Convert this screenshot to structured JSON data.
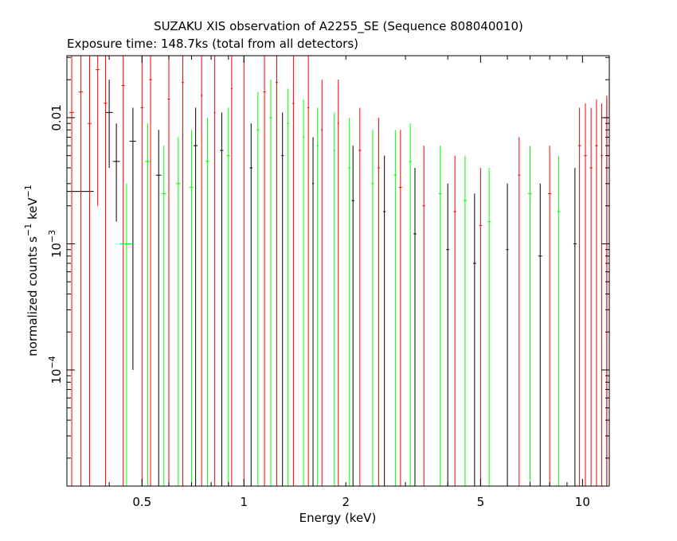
{
  "chart_data": {
    "type": "scatter",
    "title": "SUZAKU XIS observation of A2255_SE (Sequence 808040010)",
    "subtitle": "Exposure time: 148.7ks (total from all detectors)",
    "xlabel": "Energy (keV)",
    "ylabel": {
      "base": "normalized counts s",
      "exp1": "−1",
      "mid": " keV",
      "exp2": "−1"
    },
    "x_scale": "log",
    "y_scale": "log",
    "xlim": [
      0.3,
      12.0
    ],
    "ylim": [
      1.2e-05,
      0.031
    ],
    "x_ticks": [
      {
        "value": 0.5,
        "label": "0.5"
      },
      {
        "value": 1,
        "label": "1"
      },
      {
        "value": 2,
        "label": "2"
      },
      {
        "value": 5,
        "label": "5"
      },
      {
        "value": 10,
        "label": "10"
      }
    ],
    "y_ticks": [
      {
        "value": 0.01,
        "base": "0.01",
        "exp": ""
      },
      {
        "value": 0.001,
        "base": "10",
        "exp": "−3"
      },
      {
        "value": 0.0001,
        "base": "10",
        "exp": "−4"
      }
    ],
    "grid": false,
    "series": [
      {
        "color": "#000000",
        "points": [
          {
            "x": 0.3,
            "y": 0.0026,
            "xlo": 0.3,
            "xhi": 0.36,
            "ylo": 0.0009,
            "yhi": 0.005
          },
          {
            "x": 0.4,
            "y": 0.011,
            "xlo": 0.39,
            "xhi": 0.41,
            "ylo": 0.004,
            "yhi": 0.02
          },
          {
            "x": 0.42,
            "y": 0.0045,
            "xlo": 0.41,
            "xhi": 0.43,
            "ylo": 0.0015,
            "yhi": 0.009
          },
          {
            "x": 0.47,
            "y": 0.0065,
            "xlo": 0.46,
            "xhi": 0.48,
            "ylo": 0.0001,
            "yhi": 0.012
          },
          {
            "x": 0.56,
            "y": 0.0035,
            "xlo": 0.55,
            "xhi": 0.57,
            "ylo": 1.2e-05,
            "yhi": 0.008
          },
          {
            "x": 0.72,
            "y": 0.006,
            "xlo": 0.71,
            "xhi": 0.73,
            "ylo": 1.2e-05,
            "yhi": 0.012
          },
          {
            "x": 0.86,
            "y": 0.0055,
            "xlo": 0.85,
            "xhi": 0.87,
            "ylo": 1.2e-05,
            "yhi": 0.011
          },
          {
            "x": 1.05,
            "y": 0.004,
            "xlo": 1.04,
            "xhi": 1.06,
            "ylo": 1.2e-05,
            "yhi": 0.009
          },
          {
            "x": 1.3,
            "y": 0.005,
            "xlo": 1.29,
            "xhi": 1.31,
            "ylo": 1.2e-05,
            "yhi": 0.011
          },
          {
            "x": 1.6,
            "y": 0.003,
            "xlo": 1.59,
            "xhi": 1.61,
            "ylo": 1.2e-05,
            "yhi": 0.007
          },
          {
            "x": 2.1,
            "y": 0.0022,
            "xlo": 2.08,
            "xhi": 2.12,
            "ylo": 1.2e-05,
            "yhi": 0.006
          },
          {
            "x": 2.6,
            "y": 0.0018,
            "xlo": 2.58,
            "xhi": 2.62,
            "ylo": 1.2e-05,
            "yhi": 0.005
          },
          {
            "x": 3.2,
            "y": 0.0012,
            "xlo": 3.17,
            "xhi": 3.23,
            "ylo": 1.2e-05,
            "yhi": 0.004
          },
          {
            "x": 4.0,
            "y": 0.0009,
            "xlo": 3.96,
            "xhi": 4.04,
            "ylo": 1.2e-05,
            "yhi": 0.003
          },
          {
            "x": 4.8,
            "y": 0.0007,
            "xlo": 4.75,
            "xhi": 4.85,
            "ylo": 1.2e-05,
            "yhi": 0.0025
          },
          {
            "x": 6.0,
            "y": 0.0009,
            "xlo": 5.95,
            "xhi": 6.05,
            "ylo": 1.2e-05,
            "yhi": 0.003
          },
          {
            "x": 7.5,
            "y": 0.0008,
            "xlo": 7.4,
            "xhi": 7.6,
            "ylo": 1.2e-05,
            "yhi": 0.003
          },
          {
            "x": 9.5,
            "y": 0.001,
            "xlo": 9.4,
            "xhi": 9.6,
            "ylo": 1.2e-05,
            "yhi": 0.004
          },
          {
            "x": 11.8,
            "y": 0.01,
            "xlo": 11.6,
            "xhi": 11.95,
            "ylo": 1.2e-05,
            "yhi": 0.014
          }
        ]
      },
      {
        "color": "#ff0000",
        "points": [
          {
            "x": 0.31,
            "y": 0.011,
            "xlo": 0.305,
            "xhi": 0.315,
            "ylo": 1.2e-05,
            "yhi": 0.031
          },
          {
            "x": 0.33,
            "y": 0.016,
            "xlo": 0.325,
            "xhi": 0.335,
            "ylo": 1.2e-05,
            "yhi": 0.031
          },
          {
            "x": 0.35,
            "y": 0.009,
            "xlo": 0.345,
            "xhi": 0.355,
            "ylo": 1.2e-05,
            "yhi": 0.031
          },
          {
            "x": 0.37,
            "y": 0.024,
            "xlo": 0.365,
            "xhi": 0.375,
            "ylo": 0.002,
            "yhi": 0.031
          },
          {
            "x": 0.39,
            "y": 0.013,
            "xlo": 0.385,
            "xhi": 0.395,
            "ylo": 1.2e-05,
            "yhi": 0.031
          },
          {
            "x": 0.44,
            "y": 0.018,
            "xlo": 0.435,
            "xhi": 0.445,
            "ylo": 1.2e-05,
            "yhi": 0.031
          },
          {
            "x": 0.5,
            "y": 0.012,
            "xlo": 0.495,
            "xhi": 0.505,
            "ylo": 1.2e-05,
            "yhi": 0.031
          },
          {
            "x": 0.53,
            "y": 0.02,
            "xlo": 0.525,
            "xhi": 0.535,
            "ylo": 1.2e-05,
            "yhi": 0.031
          },
          {
            "x": 0.6,
            "y": 0.014,
            "xlo": 0.595,
            "xhi": 0.605,
            "ylo": 1.2e-05,
            "yhi": 0.031
          },
          {
            "x": 0.66,
            "y": 0.019,
            "xlo": 0.655,
            "xhi": 0.665,
            "ylo": 1.2e-05,
            "yhi": 0.031
          },
          {
            "x": 0.75,
            "y": 0.015,
            "xlo": 0.745,
            "xhi": 0.755,
            "ylo": 1.2e-05,
            "yhi": 0.031
          },
          {
            "x": 0.82,
            "y": 0.011,
            "xlo": 0.815,
            "xhi": 0.825,
            "ylo": 1.2e-05,
            "yhi": 0.031
          },
          {
            "x": 0.92,
            "y": 0.017,
            "xlo": 0.915,
            "xhi": 0.925,
            "ylo": 1.2e-05,
            "yhi": 0.031
          },
          {
            "x": 1.0,
            "y": 0.028,
            "xlo": 0.995,
            "xhi": 1.005,
            "ylo": 1.2e-05,
            "yhi": 0.031
          },
          {
            "x": 1.15,
            "y": 0.016,
            "xlo": 1.14,
            "xhi": 1.16,
            "ylo": 1.2e-05,
            "yhi": 0.031
          },
          {
            "x": 1.25,
            "y": 0.019,
            "xlo": 1.24,
            "xhi": 1.26,
            "ylo": 1.2e-05,
            "yhi": 0.031
          },
          {
            "x": 1.4,
            "y": 0.013,
            "xlo": 1.39,
            "xhi": 1.41,
            "ylo": 1.2e-05,
            "yhi": 0.031
          },
          {
            "x": 1.55,
            "y": 0.012,
            "xlo": 1.54,
            "xhi": 1.56,
            "ylo": 1.2e-05,
            "yhi": 0.031
          },
          {
            "x": 1.7,
            "y": 0.008,
            "xlo": 1.69,
            "xhi": 1.71,
            "ylo": 1.2e-05,
            "yhi": 0.02
          },
          {
            "x": 1.9,
            "y": 0.009,
            "xlo": 1.89,
            "xhi": 1.91,
            "ylo": 1.2e-05,
            "yhi": 0.02
          },
          {
            "x": 2.2,
            "y": 0.0055,
            "xlo": 2.18,
            "xhi": 2.22,
            "ylo": 1.2e-05,
            "yhi": 0.012
          },
          {
            "x": 2.5,
            "y": 0.004,
            "xlo": 2.48,
            "xhi": 2.52,
            "ylo": 1.2e-05,
            "yhi": 0.01
          },
          {
            "x": 2.9,
            "y": 0.0028,
            "xlo": 2.87,
            "xhi": 2.93,
            "ylo": 1.2e-05,
            "yhi": 0.008
          },
          {
            "x": 3.4,
            "y": 0.002,
            "xlo": 3.37,
            "xhi": 3.43,
            "ylo": 1.2e-05,
            "yhi": 0.006
          },
          {
            "x": 4.2,
            "y": 0.0018,
            "xlo": 4.16,
            "xhi": 4.24,
            "ylo": 1.2e-05,
            "yhi": 0.005
          },
          {
            "x": 5.0,
            "y": 0.0014,
            "xlo": 4.95,
            "xhi": 5.05,
            "ylo": 1.2e-05,
            "yhi": 0.004
          },
          {
            "x": 6.5,
            "y": 0.0035,
            "xlo": 6.45,
            "xhi": 6.55,
            "ylo": 1.2e-05,
            "yhi": 0.007
          },
          {
            "x": 8.0,
            "y": 0.0025,
            "xlo": 7.9,
            "xhi": 8.1,
            "ylo": 1.2e-05,
            "yhi": 0.006
          },
          {
            "x": 9.8,
            "y": 0.006,
            "xlo": 9.7,
            "xhi": 9.9,
            "ylo": 1.2e-05,
            "yhi": 0.012
          },
          {
            "x": 10.2,
            "y": 0.005,
            "xlo": 10.1,
            "xhi": 10.3,
            "ylo": 1.2e-05,
            "yhi": 0.013
          },
          {
            "x": 10.6,
            "y": 0.004,
            "xlo": 10.5,
            "xhi": 10.7,
            "ylo": 1.2e-05,
            "yhi": 0.012
          },
          {
            "x": 11.0,
            "y": 0.006,
            "xlo": 10.9,
            "xhi": 11.1,
            "ylo": 1.2e-05,
            "yhi": 0.014
          },
          {
            "x": 11.4,
            "y": 0.005,
            "xlo": 11.3,
            "xhi": 11.5,
            "ylo": 1.2e-05,
            "yhi": 0.013
          },
          {
            "x": 11.8,
            "y": 0.007,
            "xlo": 11.7,
            "xhi": 11.9,
            "ylo": 1.2e-05,
            "yhi": 0.015
          }
        ]
      },
      {
        "color": "#00ff00",
        "points": [
          {
            "x": 0.45,
            "y": 0.001,
            "xlo": 0.43,
            "xhi": 0.47,
            "ylo": 1.2e-05,
            "yhi": 0.003
          },
          {
            "x": 0.52,
            "y": 0.0045,
            "xlo": 0.51,
            "xhi": 0.53,
            "ylo": 1.2e-05,
            "yhi": 0.009
          },
          {
            "x": 0.58,
            "y": 0.0025,
            "xlo": 0.57,
            "xhi": 0.59,
            "ylo": 1.2e-05,
            "yhi": 0.006
          },
          {
            "x": 0.64,
            "y": 0.003,
            "xlo": 0.63,
            "xhi": 0.65,
            "ylo": 1.2e-05,
            "yhi": 0.007
          },
          {
            "x": 0.7,
            "y": 0.0028,
            "xlo": 0.69,
            "xhi": 0.71,
            "ylo": 1.2e-05,
            "yhi": 0.008
          },
          {
            "x": 0.78,
            "y": 0.0045,
            "xlo": 0.77,
            "xhi": 0.79,
            "ylo": 1.2e-05,
            "yhi": 0.01
          },
          {
            "x": 0.9,
            "y": 0.005,
            "xlo": 0.89,
            "xhi": 0.91,
            "ylo": 1.2e-05,
            "yhi": 0.012
          },
          {
            "x": 1.1,
            "y": 0.008,
            "xlo": 1.09,
            "xhi": 1.11,
            "ylo": 1.2e-05,
            "yhi": 0.016
          },
          {
            "x": 1.2,
            "y": 0.01,
            "xlo": 1.19,
            "xhi": 1.21,
            "ylo": 1.2e-05,
            "yhi": 0.02
          },
          {
            "x": 1.35,
            "y": 0.009,
            "xlo": 1.34,
            "xhi": 1.36,
            "ylo": 1.2e-05,
            "yhi": 0.017
          },
          {
            "x": 1.5,
            "y": 0.007,
            "xlo": 1.49,
            "xhi": 1.51,
            "ylo": 1.2e-05,
            "yhi": 0.014
          },
          {
            "x": 1.65,
            "y": 0.006,
            "xlo": 1.64,
            "xhi": 1.66,
            "ylo": 1.2e-05,
            "yhi": 0.012
          },
          {
            "x": 1.85,
            "y": 0.0055,
            "xlo": 1.84,
            "xhi": 1.86,
            "ylo": 1.2e-05,
            "yhi": 0.011
          },
          {
            "x": 2.05,
            "y": 0.004,
            "xlo": 2.03,
            "xhi": 2.07,
            "ylo": 1.2e-05,
            "yhi": 0.01
          },
          {
            "x": 2.4,
            "y": 0.003,
            "xlo": 2.38,
            "xhi": 2.42,
            "ylo": 1.2e-05,
            "yhi": 0.008
          },
          {
            "x": 2.8,
            "y": 0.0035,
            "xlo": 2.77,
            "xhi": 2.83,
            "ylo": 1.2e-05,
            "yhi": 0.008
          },
          {
            "x": 3.1,
            "y": 0.0045,
            "xlo": 3.07,
            "xhi": 3.13,
            "ylo": 1.2e-05,
            "yhi": 0.009
          },
          {
            "x": 3.8,
            "y": 0.0025,
            "xlo": 3.76,
            "xhi": 3.84,
            "ylo": 1.2e-05,
            "yhi": 0.006
          },
          {
            "x": 4.5,
            "y": 0.0022,
            "xlo": 4.45,
            "xhi": 4.55,
            "ylo": 1.2e-05,
            "yhi": 0.005
          },
          {
            "x": 5.3,
            "y": 0.0015,
            "xlo": 5.25,
            "xhi": 5.35,
            "ylo": 1.2e-05,
            "yhi": 0.004
          },
          {
            "x": 7.0,
            "y": 0.0025,
            "xlo": 6.9,
            "xhi": 7.1,
            "ylo": 1.2e-05,
            "yhi": 0.006
          },
          {
            "x": 8.5,
            "y": 0.0018,
            "xlo": 8.4,
            "xhi": 8.6,
            "ylo": 1.2e-05,
            "yhi": 0.005
          }
        ]
      }
    ]
  }
}
